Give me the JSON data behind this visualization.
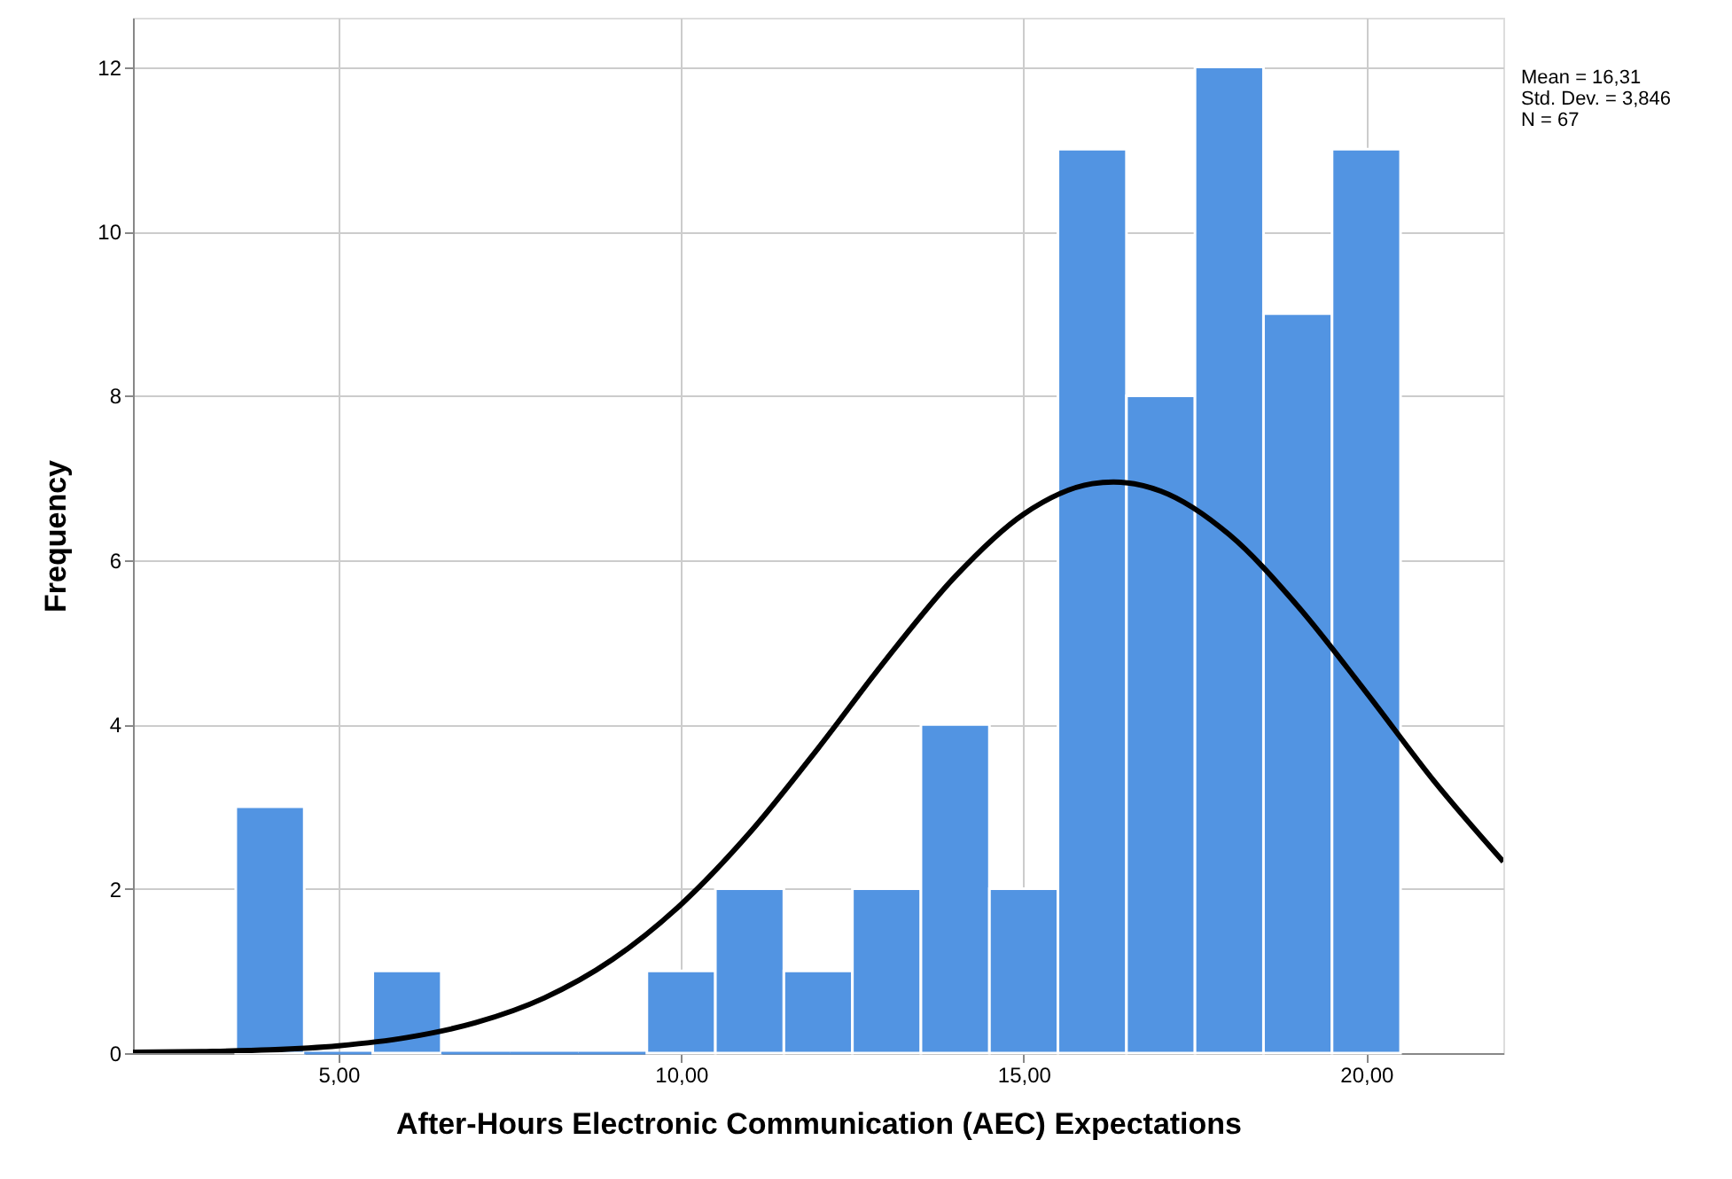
{
  "chart_data": {
    "type": "histogram",
    "xlabel": "After-Hours Electronic Communication (AEC) Expectations",
    "ylabel": "Frequency",
    "bins": [
      3.5,
      4.5,
      5.5,
      6.5,
      7.5,
      8.5,
      9.5,
      10.5,
      11.5,
      12.5,
      13.5,
      14.5,
      15.5,
      16.5,
      17.5,
      18.5,
      19.5,
      20.5
    ],
    "values": [
      3,
      0,
      1,
      0,
      0,
      0,
      1,
      2,
      1,
      2,
      4,
      2,
      11,
      8,
      12,
      9,
      11
    ],
    "color": "#5294e2",
    "series": [
      {
        "type": "line",
        "color": "#000000",
        "x": [
          2,
          3,
          4,
          5,
          6,
          7,
          8,
          9,
          10,
          11,
          12,
          13,
          14,
          15,
          16,
          16.31,
          17,
          18,
          19,
          20,
          21,
          22
        ],
        "values": [
          0.01,
          0.02,
          0.04,
          0.09,
          0.19,
          0.37,
          0.67,
          1.14,
          1.81,
          2.68,
          3.71,
          4.8,
          5.8,
          6.56,
          6.93,
          6.95,
          6.84,
          6.31,
          5.44,
          4.39,
          3.3,
          2.33
        ]
      }
    ],
    "xlim": [
      2,
      22
    ],
    "ylim": [
      0,
      12.6
    ],
    "xticks": [
      {
        "value": 5,
        "label": "5,00"
      },
      {
        "value": 10,
        "label": "10,00"
      },
      {
        "value": 15,
        "label": "15,00"
      },
      {
        "value": 20,
        "label": "20,00"
      }
    ],
    "yticks": [
      0,
      2,
      4,
      6,
      8,
      10,
      12
    ],
    "grid": true,
    "annotations": [
      "Mean = 16,31",
      "Std. Dev. = 3,846",
      "N = 67"
    ]
  }
}
